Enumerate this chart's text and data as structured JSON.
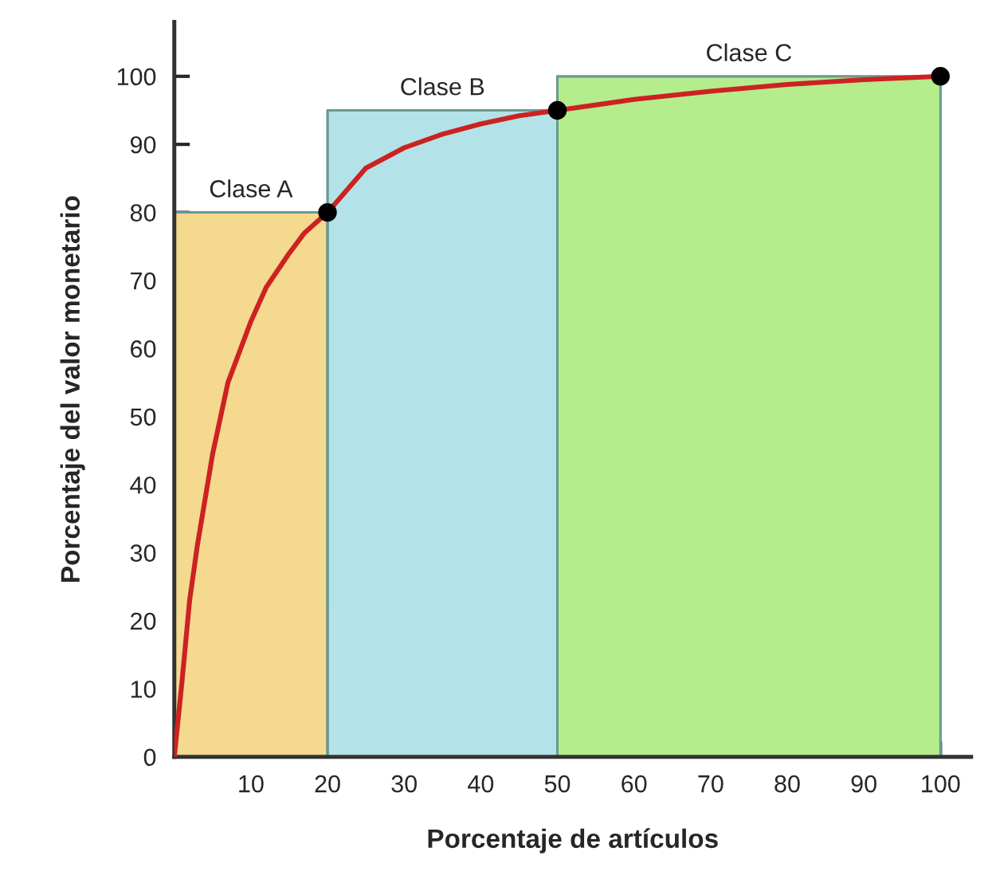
{
  "chart_data": {
    "type": "area",
    "xlabel": "Porcentaje de artículos",
    "ylabel": "Porcentaje del valor monetario",
    "xlim": [
      0,
      104
    ],
    "ylim": [
      0,
      108
    ],
    "xticks": [
      10,
      20,
      30,
      40,
      50,
      60,
      70,
      80,
      90,
      100
    ],
    "yticks": [
      0,
      10,
      20,
      30,
      40,
      50,
      60,
      70,
      80,
      90,
      100
    ],
    "grid": false,
    "legend": false,
    "series": [
      {
        "name": "Clase A",
        "color": "#f5d98f",
        "x": [
          0,
          20
        ],
        "values": [
          80,
          80
        ]
      },
      {
        "name": "Clase B",
        "color": "#b3e3e8",
        "x": [
          20,
          50
        ],
        "values": [
          95,
          95
        ]
      },
      {
        "name": "Clase C",
        "color": "#b5ec8c",
        "x": [
          50,
          100
        ],
        "values": [
          100,
          100
        ]
      },
      {
        "type": "line",
        "color": "#cc2222",
        "marker": "none",
        "x": [
          0,
          1,
          2,
          3,
          5,
          7,
          10,
          12,
          15,
          17,
          20,
          25,
          30,
          35,
          40,
          45,
          50,
          60,
          70,
          80,
          90,
          100
        ],
        "values": [
          0,
          11,
          23,
          31,
          44.5,
          55,
          64,
          69,
          74,
          77,
          80,
          86.5,
          89.5,
          91.5,
          93,
          94.2,
          95,
          96.6,
          97.8,
          98.8,
          99.5,
          100
        ]
      },
      {
        "type": "scatter",
        "color": "#000000",
        "marker": "circle",
        "x": [
          20,
          50,
          100
        ],
        "values": [
          80,
          95,
          100
        ]
      }
    ]
  }
}
